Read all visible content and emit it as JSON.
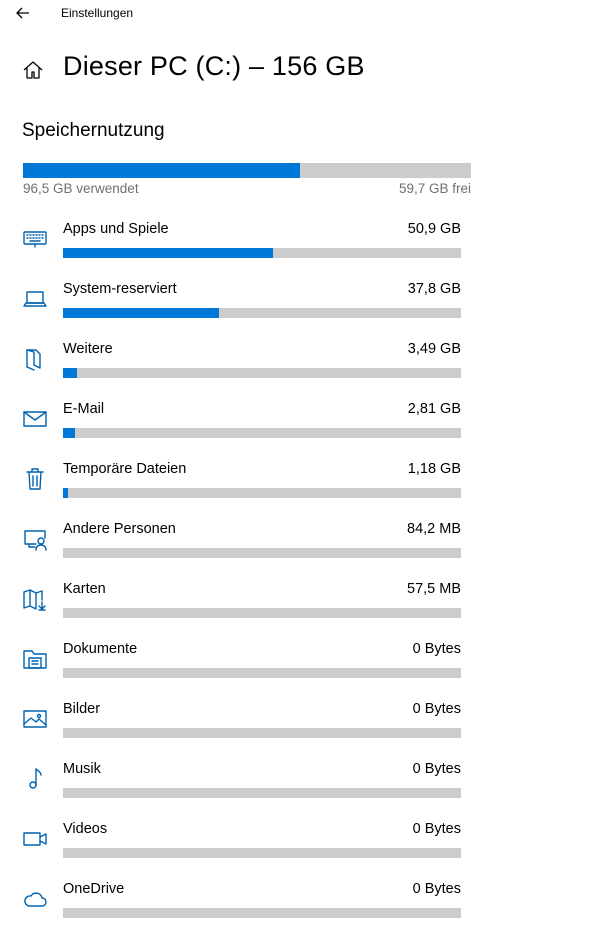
{
  "app": {
    "title": "Einstellungen"
  },
  "header": {
    "title": "Dieser PC (C:) – 156 GB"
  },
  "section": {
    "title": "Speichernutzung"
  },
  "summary": {
    "used_label": "96,5 GB verwendet",
    "free_label": "59,7 GB frei",
    "used_fraction": 0.618
  },
  "colors": {
    "accent": "#0078d7",
    "track": "#cccccc",
    "icon": "#0063b1",
    "muted_text": "#707070"
  },
  "categories": [
    {
      "label": "Apps und Spiele",
      "size": "50,9 GB",
      "fraction": 0.528,
      "icon": "keyboard-icon"
    },
    {
      "label": "System-reserviert",
      "size": "37,8 GB",
      "fraction": 0.392,
      "icon": "laptop-icon"
    },
    {
      "label": "Weitere",
      "size": "3,49 GB",
      "fraction": 0.036,
      "icon": "folder-page-icon"
    },
    {
      "label": "E-Mail",
      "size": "2,81 GB",
      "fraction": 0.029,
      "icon": "mail-icon"
    },
    {
      "label": "Temporäre Dateien",
      "size": "1,18 GB",
      "fraction": 0.012,
      "icon": "trash-icon"
    },
    {
      "label": "Andere Personen",
      "size": "84,2 MB",
      "fraction": 0.0,
      "icon": "person-monitor-icon"
    },
    {
      "label": "Karten",
      "size": "57,5 MB",
      "fraction": 0.0,
      "icon": "map-download-icon"
    },
    {
      "label": "Dokumente",
      "size": "0 Bytes",
      "fraction": 0.0,
      "icon": "documents-folder-icon"
    },
    {
      "label": "Bilder",
      "size": "0 Bytes",
      "fraction": 0.0,
      "icon": "picture-icon"
    },
    {
      "label": "Musik",
      "size": "0 Bytes",
      "fraction": 0.0,
      "icon": "music-note-icon"
    },
    {
      "label": "Videos",
      "size": "0 Bytes",
      "fraction": 0.0,
      "icon": "video-camera-icon"
    },
    {
      "label": "OneDrive",
      "size": "0 Bytes",
      "fraction": 0.0,
      "icon": "cloud-icon"
    }
  ]
}
